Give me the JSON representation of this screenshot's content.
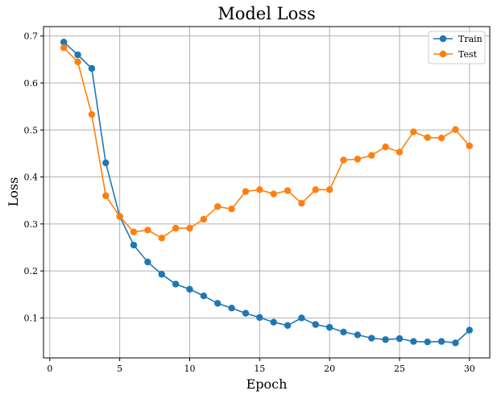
{
  "chart_data": {
    "type": "line",
    "title": "Model Loss",
    "xlabel": "Epoch",
    "ylabel": "Loss",
    "xlim": [
      -0.45,
      31.45
    ],
    "ylim": [
      0.015,
      0.72
    ],
    "xticks": [
      0,
      5,
      10,
      15,
      20,
      25,
      30
    ],
    "yticks": [
      0.1,
      0.2,
      0.3,
      0.4,
      0.5,
      0.6,
      0.7
    ],
    "grid": true,
    "legend_position": "top-right",
    "x": [
      1,
      2,
      3,
      4,
      5,
      6,
      7,
      8,
      9,
      10,
      11,
      12,
      13,
      14,
      15,
      16,
      17,
      18,
      19,
      20,
      21,
      22,
      23,
      24,
      25,
      26,
      27,
      28,
      29,
      30
    ],
    "series": [
      {
        "name": "Train",
        "color": "#1f77b4",
        "values": [
          0.687,
          0.66,
          0.631,
          0.43,
          0.316,
          0.255,
          0.219,
          0.193,
          0.172,
          0.161,
          0.147,
          0.131,
          0.121,
          0.11,
          0.101,
          0.091,
          0.084,
          0.1,
          0.086,
          0.08,
          0.07,
          0.064,
          0.057,
          0.054,
          0.056,
          0.05,
          0.049,
          0.05,
          0.047,
          0.074
        ]
      },
      {
        "name": "Test",
        "color": "#ff7f0e",
        "values": [
          0.675,
          0.645,
          0.533,
          0.36,
          0.316,
          0.283,
          0.287,
          0.27,
          0.291,
          0.291,
          0.31,
          0.337,
          0.332,
          0.369,
          0.373,
          0.364,
          0.371,
          0.344,
          0.373,
          0.373,
          0.436,
          0.438,
          0.446,
          0.464,
          0.453,
          0.496,
          0.484,
          0.483,
          0.501,
          0.466
        ]
      }
    ]
  }
}
